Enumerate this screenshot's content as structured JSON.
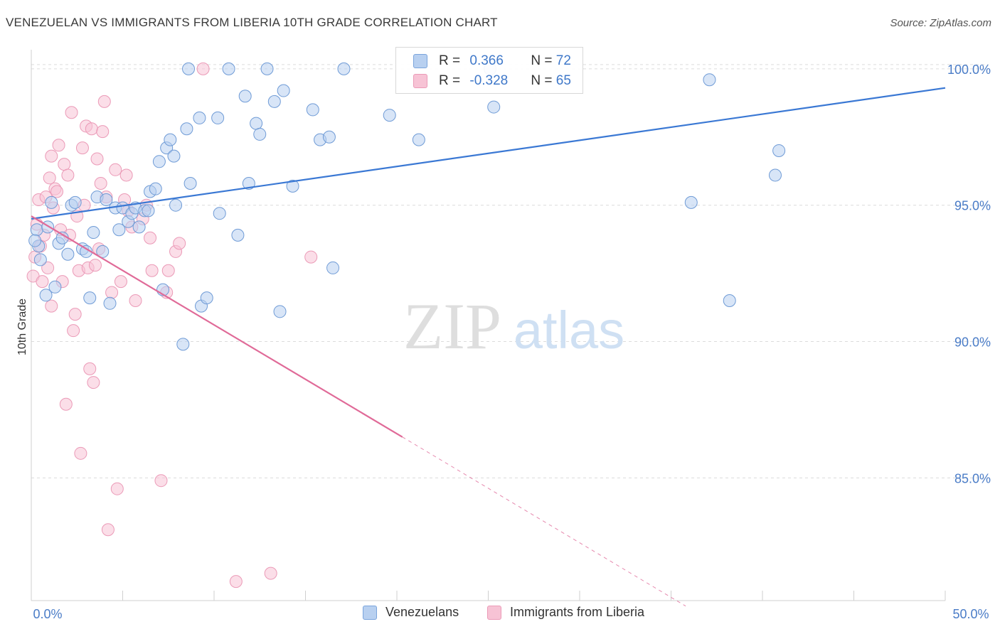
{
  "title": "VENEZUELAN VS IMMIGRANTS FROM LIBERIA 10TH GRADE CORRELATION CHART",
  "source": "Source: ZipAtlas.com",
  "watermark": {
    "zip": "ZIP",
    "atlas": "atlas"
  },
  "colors": {
    "blue": "#3a78d4",
    "blue_fill": "#b8d0f0",
    "pink": "#e06a98",
    "pink_fill": "#f7c3d5",
    "tick": "#4a7cc7",
    "grid": "#dcdcdc"
  },
  "legend": {
    "row1": {
      "r_label": "R = ",
      "r_value": "0.366",
      "n_label": "N = ",
      "n_value": "72"
    },
    "row2": {
      "r_label": "R = ",
      "r_value": "-0.328",
      "n_label": "N = ",
      "n_value": "65"
    }
  },
  "bottom_legend": {
    "s1": "Venezuelans",
    "s2": "Immigrants from Liberia"
  },
  "chart_data": {
    "type": "scatter",
    "title": "VENEZUELAN VS IMMIGRANTS FROM LIBERIA 10TH GRADE CORRELATION CHART",
    "xlabel": "",
    "ylabel": "10th Grade",
    "xlim": [
      0,
      50
    ],
    "ylim": [
      80.5,
      100.7
    ],
    "x_tick_labels": [
      "0.0%",
      "50.0%"
    ],
    "y_ticks": [
      85,
      90,
      95,
      100
    ],
    "y_tick_labels": [
      "85.0%",
      "90.0%",
      "95.0%",
      "100.0%"
    ],
    "grid": true,
    "legend_position": "top-center",
    "series": [
      {
        "name": "Venezuelans",
        "color": "#3a78d4",
        "R": 0.366,
        "N": 72,
        "trend": {
          "x": [
            0,
            50
          ],
          "y": [
            94.5,
            99.3
          ]
        },
        "points": [
          [
            0.3,
            94.1
          ],
          [
            0.4,
            93.5
          ],
          [
            0.5,
            93.0
          ],
          [
            0.8,
            91.7
          ],
          [
            0.9,
            94.2
          ],
          [
            1.1,
            95.1
          ],
          [
            1.3,
            92.0
          ],
          [
            1.5,
            93.6
          ],
          [
            1.7,
            93.8
          ],
          [
            2.0,
            93.2
          ],
          [
            2.2,
            95.0
          ],
          [
            2.4,
            95.1
          ],
          [
            2.8,
            93.4
          ],
          [
            3.0,
            93.3
          ],
          [
            3.2,
            91.6
          ],
          [
            3.4,
            94.0
          ],
          [
            3.6,
            95.3
          ],
          [
            3.9,
            93.3
          ],
          [
            4.1,
            95.2
          ],
          [
            4.3,
            91.4
          ],
          [
            4.6,
            94.9
          ],
          [
            4.8,
            94.1
          ],
          [
            5.0,
            94.9
          ],
          [
            5.3,
            94.4
          ],
          [
            5.5,
            94.7
          ],
          [
            5.7,
            94.9
          ],
          [
            5.9,
            94.2
          ],
          [
            6.2,
            94.8
          ],
          [
            6.4,
            94.8
          ],
          [
            6.5,
            95.5
          ],
          [
            6.8,
            95.6
          ],
          [
            7.0,
            96.6
          ],
          [
            7.2,
            91.9
          ],
          [
            7.4,
            97.1
          ],
          [
            7.6,
            97.4
          ],
          [
            7.8,
            96.8
          ],
          [
            7.9,
            95.0
          ],
          [
            8.3,
            89.9
          ],
          [
            8.5,
            97.8
          ],
          [
            8.6,
            100.0
          ],
          [
            8.7,
            95.8
          ],
          [
            9.2,
            98.2
          ],
          [
            9.3,
            91.3
          ],
          [
            9.6,
            91.6
          ],
          [
            10.2,
            98.2
          ],
          [
            10.3,
            94.7
          ],
          [
            10.8,
            100.0
          ],
          [
            11.3,
            93.9
          ],
          [
            11.7,
            99.0
          ],
          [
            11.9,
            95.8
          ],
          [
            12.3,
            98.0
          ],
          [
            12.5,
            97.6
          ],
          [
            12.9,
            100.0
          ],
          [
            13.3,
            98.8
          ],
          [
            13.6,
            91.1
          ],
          [
            13.8,
            99.2
          ],
          [
            14.3,
            95.7
          ],
          [
            15.4,
            98.5
          ],
          [
            15.8,
            97.4
          ],
          [
            16.3,
            97.5
          ],
          [
            16.5,
            92.7
          ],
          [
            17.1,
            100.0
          ],
          [
            19.6,
            98.3
          ],
          [
            21.2,
            97.4
          ],
          [
            25.1,
            100.0
          ],
          [
            25.3,
            98.6
          ],
          [
            36.1,
            95.1
          ],
          [
            37.1,
            99.6
          ],
          [
            38.2,
            91.5
          ],
          [
            40.7,
            96.1
          ],
          [
            40.9,
            97.0
          ],
          [
            0.2,
            93.7
          ]
        ]
      },
      {
        "name": "Immigrants from Liberia",
        "color": "#e06a98",
        "R": -0.328,
        "N": 65,
        "trend": {
          "x": [
            0,
            20.3
          ],
          "y": [
            94.6,
            86.5
          ]
        },
        "trend_extension": {
          "x": [
            20.3,
            35.8
          ],
          "y": [
            86.5,
            80.3
          ]
        },
        "points": [
          [
            0.1,
            92.4
          ],
          [
            0.2,
            93.1
          ],
          [
            0.3,
            94.3
          ],
          [
            0.4,
            95.2
          ],
          [
            0.5,
            93.5
          ],
          [
            0.6,
            92.2
          ],
          [
            0.7,
            93.9
          ],
          [
            0.8,
            95.3
          ],
          [
            0.9,
            92.7
          ],
          [
            1.0,
            96.0
          ],
          [
            1.1,
            91.3
          ],
          [
            1.2,
            94.9
          ],
          [
            1.3,
            95.6
          ],
          [
            1.4,
            95.5
          ],
          [
            1.5,
            97.2
          ],
          [
            1.6,
            94.1
          ],
          [
            1.7,
            92.2
          ],
          [
            1.8,
            96.5
          ],
          [
            1.9,
            87.7
          ],
          [
            2.0,
            96.1
          ],
          [
            2.1,
            93.9
          ],
          [
            2.2,
            98.4
          ],
          [
            2.3,
            90.4
          ],
          [
            2.4,
            91.0
          ],
          [
            2.5,
            94.6
          ],
          [
            2.6,
            92.6
          ],
          [
            2.7,
            85.9
          ],
          [
            2.8,
            97.1
          ],
          [
            2.9,
            95.0
          ],
          [
            3.0,
            97.9
          ],
          [
            3.1,
            92.7
          ],
          [
            3.2,
            89.0
          ],
          [
            3.3,
            97.8
          ],
          [
            3.4,
            88.5
          ],
          [
            3.5,
            92.8
          ],
          [
            3.6,
            96.7
          ],
          [
            3.7,
            93.4
          ],
          [
            3.8,
            95.8
          ],
          [
            3.9,
            97.7
          ],
          [
            4.1,
            95.3
          ],
          [
            4.2,
            83.1
          ],
          [
            4.4,
            91.8
          ],
          [
            4.6,
            96.3
          ],
          [
            4.7,
            84.6
          ],
          [
            4.9,
            92.2
          ],
          [
            5.1,
            95.2
          ],
          [
            5.2,
            96.1
          ],
          [
            5.3,
            94.8
          ],
          [
            5.5,
            94.2
          ],
          [
            5.7,
            91.5
          ],
          [
            6.1,
            94.5
          ],
          [
            6.3,
            95.0
          ],
          [
            6.5,
            93.8
          ],
          [
            6.6,
            92.6
          ],
          [
            7.1,
            84.9
          ],
          [
            7.4,
            91.8
          ],
          [
            7.5,
            92.6
          ],
          [
            7.9,
            93.3
          ],
          [
            8.1,
            93.6
          ],
          [
            9.4,
            100.0
          ],
          [
            11.2,
            81.2
          ],
          [
            13.1,
            81.5
          ],
          [
            15.3,
            93.1
          ],
          [
            1.1,
            96.8
          ],
          [
            4.0,
            98.8
          ]
        ]
      }
    ]
  }
}
